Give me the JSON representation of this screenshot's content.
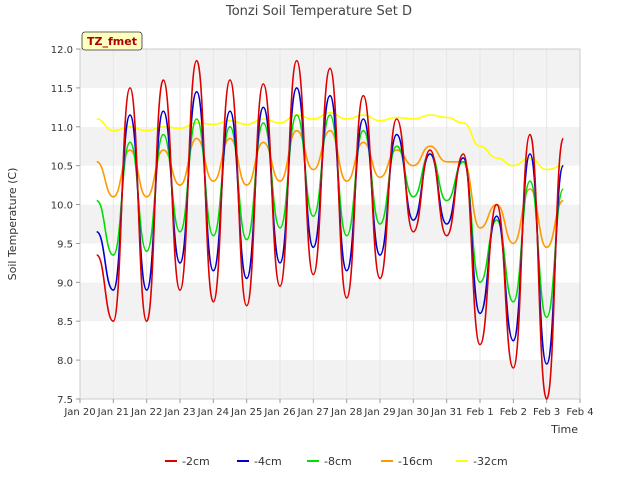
{
  "chart_data": {
    "type": "line",
    "title": "Tonzi Soil Temperature Set D",
    "xlabel": "Time",
    "ylabel": "Soil Temperature (C)",
    "xlim": [
      "2024-01-20",
      "2024-02-04"
    ],
    "ylim": [
      7.5,
      12.0
    ],
    "x_ticks": [
      "Jan 20",
      "Jan 21",
      "Jan 22",
      "Jan 23",
      "Jan 24",
      "Jan 25",
      "Jan 26",
      "Jan 27",
      "Jan 28",
      "Jan 29",
      "Jan 30",
      "Jan 31",
      "Feb 1",
      "Feb 2",
      "Feb 3",
      "Feb 4"
    ],
    "y_ticks": [
      "7.5",
      "8.0",
      "8.5",
      "9.0",
      "9.5",
      "10.0",
      "10.5",
      "11.0",
      "11.5",
      "12.0"
    ],
    "grid": "horizontal bands",
    "legend_position": "bottom",
    "annotation": "TZ_fmet",
    "x": [
      "2024-01-20 12:00",
      "2024-01-21 00:00",
      "2024-01-21 12:00",
      "2024-01-22 00:00",
      "2024-01-22 12:00",
      "2024-01-23 00:00",
      "2024-01-23 12:00",
      "2024-01-24 00:00",
      "2024-01-24 12:00",
      "2024-01-25 00:00",
      "2024-01-25 12:00",
      "2024-01-26 00:00",
      "2024-01-26 12:00",
      "2024-01-27 00:00",
      "2024-01-27 12:00",
      "2024-01-28 00:00",
      "2024-01-28 12:00",
      "2024-01-29 00:00",
      "2024-01-29 12:00",
      "2024-01-30 00:00",
      "2024-01-30 12:00",
      "2024-01-31 00:00",
      "2024-01-31 12:00",
      "2024-02-01 00:00",
      "2024-02-01 12:00",
      "2024-02-02 00:00",
      "2024-02-02 12:00",
      "2024-02-03 00:00",
      "2024-02-03 12:00"
    ],
    "series": [
      {
        "name": "-2cm",
        "color": "#dd0000",
        "values": [
          9.35,
          8.5,
          11.5,
          8.5,
          11.6,
          8.9,
          11.85,
          8.75,
          11.6,
          8.7,
          11.55,
          8.95,
          11.85,
          9.1,
          11.75,
          8.8,
          11.4,
          9.05,
          11.1,
          9.65,
          10.7,
          9.6,
          10.65,
          8.2,
          10.0,
          7.9,
          10.9,
          7.5,
          10.85
        ]
      },
      {
        "name": "-4cm",
        "color": "#0000cc",
        "values": [
          9.65,
          8.9,
          11.15,
          8.9,
          11.2,
          9.25,
          11.45,
          9.15,
          11.2,
          9.05,
          11.25,
          9.25,
          11.5,
          9.45,
          11.4,
          9.15,
          11.1,
          9.35,
          10.9,
          9.8,
          10.65,
          9.75,
          10.6,
          8.6,
          9.85,
          8.25,
          10.65,
          7.95,
          10.5
        ]
      },
      {
        "name": "-8cm",
        "color": "#00dd00",
        "values": [
          10.05,
          9.35,
          10.8,
          9.4,
          10.9,
          9.65,
          11.1,
          9.6,
          11.0,
          9.55,
          11.05,
          9.7,
          11.15,
          9.85,
          11.15,
          9.6,
          10.95,
          9.75,
          10.75,
          10.1,
          10.65,
          10.05,
          10.55,
          9.0,
          9.8,
          8.75,
          10.3,
          8.55,
          10.2
        ]
      },
      {
        "name": "-16cm",
        "color": "#ff9900",
        "values": [
          10.55,
          10.1,
          10.7,
          10.1,
          10.7,
          10.25,
          10.85,
          10.3,
          10.85,
          10.25,
          10.8,
          10.3,
          10.95,
          10.45,
          10.95,
          10.3,
          10.8,
          10.35,
          10.7,
          10.5,
          10.75,
          10.55,
          10.55,
          9.7,
          10.0,
          9.5,
          10.2,
          9.45,
          10.05
        ]
      },
      {
        "name": "-32cm",
        "color": "#ffff00",
        "values": [
          11.1,
          10.95,
          11.0,
          10.95,
          11.0,
          10.98,
          11.05,
          11.03,
          11.08,
          11.03,
          11.1,
          11.05,
          11.15,
          11.1,
          11.18,
          11.1,
          11.15,
          11.08,
          11.12,
          11.1,
          11.15,
          11.12,
          11.05,
          10.75,
          10.6,
          10.5,
          10.6,
          10.45,
          10.5
        ]
      }
    ]
  }
}
